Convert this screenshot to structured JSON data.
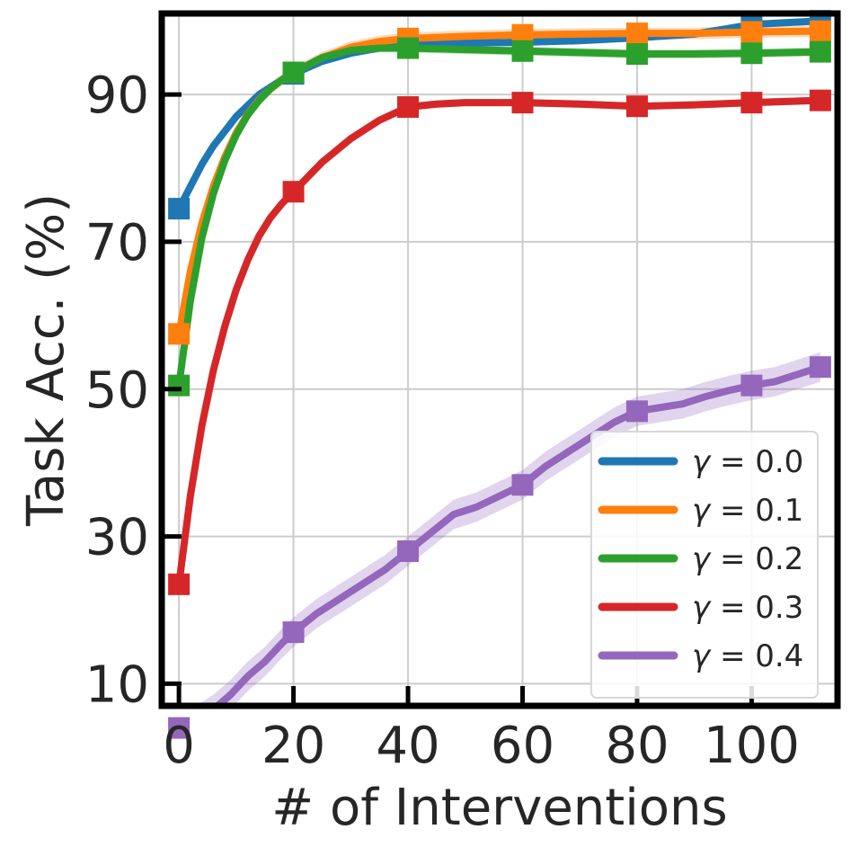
{
  "chart_data": {
    "type": "line",
    "title": "",
    "xlabel": "# of Interventions",
    "ylabel": "Task Acc. (%)",
    "xlim": [
      -3,
      115
    ],
    "ylim": [
      7,
      101
    ],
    "xticks": [
      0,
      20,
      40,
      60,
      80,
      100
    ],
    "xtick_labels": [
      "0",
      "20",
      "40",
      "60",
      "80",
      "100"
    ],
    "yticks": [
      10,
      30,
      50,
      70,
      90
    ],
    "ytick_labels": [
      "10",
      "30",
      "50",
      "70",
      "90"
    ],
    "grid": true,
    "legend_position": "bottom-right",
    "markers": "square",
    "marker_x": [
      0,
      20,
      40,
      60,
      80,
      100,
      112
    ],
    "series": [
      {
        "name": "γ = 0.0",
        "legend_prefix": "γ",
        "legend_value": "= 0.0",
        "color": "#1f77b4",
        "x": [
          0,
          2,
          4,
          6,
          8,
          10,
          12,
          14,
          16,
          18,
          20,
          25,
          30,
          35,
          40,
          50,
          60,
          70,
          80,
          90,
          100,
          112
        ],
        "y": [
          74.5,
          77.5,
          80.5,
          83,
          85,
          87,
          88.5,
          90,
          91,
          92,
          92.8,
          94.5,
          95.6,
          96.3,
          96.8,
          97,
          97.1,
          97.3,
          97.7,
          98.2,
          99.5,
          100
        ],
        "band": 0.4
      },
      {
        "name": "γ = 0.1",
        "legend_prefix": "γ",
        "legend_value": "= 0.1",
        "color": "#ff7f0e",
        "x": [
          0,
          2,
          4,
          6,
          8,
          10,
          12,
          14,
          16,
          18,
          20,
          25,
          30,
          35,
          40,
          50,
          60,
          70,
          80,
          90,
          100,
          112
        ],
        "y": [
          57.5,
          66,
          72.5,
          77.5,
          81.5,
          84.8,
          87.3,
          89.3,
          90.8,
          92,
          93,
          95,
          96.4,
          97.2,
          97.6,
          97.9,
          98.1,
          98.2,
          98.3,
          98.3,
          98.5,
          98.6
        ],
        "band": 0.8
      },
      {
        "name": "γ = 0.2",
        "legend_prefix": "γ",
        "legend_value": "= 0.2",
        "color": "#2ca02c",
        "x": [
          0,
          2,
          4,
          6,
          8,
          10,
          12,
          14,
          16,
          18,
          20,
          25,
          30,
          35,
          40,
          50,
          60,
          70,
          80,
          90,
          100,
          112
        ],
        "y": [
          50.5,
          62,
          70.5,
          76.5,
          81,
          84.5,
          87.2,
          89.2,
          90.8,
          92,
          93,
          95,
          96,
          96.3,
          96.3,
          96.1,
          95.9,
          95.7,
          95.5,
          95.5,
          95.6,
          95.8
        ],
        "band": 0.6
      },
      {
        "name": "γ = 0.3",
        "legend_prefix": "γ",
        "legend_value": "= 0.3",
        "color": "#d62728",
        "x": [
          0,
          2,
          4,
          6,
          8,
          10,
          12,
          14,
          16,
          18,
          20,
          25,
          30,
          35,
          40,
          45,
          50,
          60,
          70,
          80,
          90,
          100,
          112
        ],
        "y": [
          23.5,
          35.5,
          45,
          52.5,
          58.5,
          63.5,
          67.5,
          70.8,
          73.3,
          75.2,
          76.8,
          80.8,
          84,
          86.5,
          88.3,
          88.7,
          88.9,
          88.9,
          88.7,
          88.4,
          88.6,
          88.9,
          89.2
        ],
        "band": 0.5
      },
      {
        "name": "γ = 0.4",
        "legend_prefix": "γ",
        "legend_value": "= 0.4",
        "color": "#9467bd",
        "x": [
          0,
          3,
          6,
          9,
          12,
          15,
          18,
          20,
          24,
          28,
          32,
          36,
          40,
          44,
          48,
          52,
          56,
          60,
          64,
          68,
          72,
          76,
          80,
          84,
          88,
          92,
          96,
          100,
          104,
          108,
          112
        ],
        "y": [
          4,
          5,
          6.5,
          8.5,
          11,
          13,
          15.5,
          17,
          19.5,
          21.5,
          23.5,
          25.5,
          28,
          30.5,
          33,
          34,
          35.5,
          37,
          39.5,
          41.5,
          43.5,
          45.5,
          47,
          47.5,
          48,
          49,
          49.8,
          50.5,
          51,
          52,
          53
        ],
        "band": 2.0
      }
    ]
  }
}
